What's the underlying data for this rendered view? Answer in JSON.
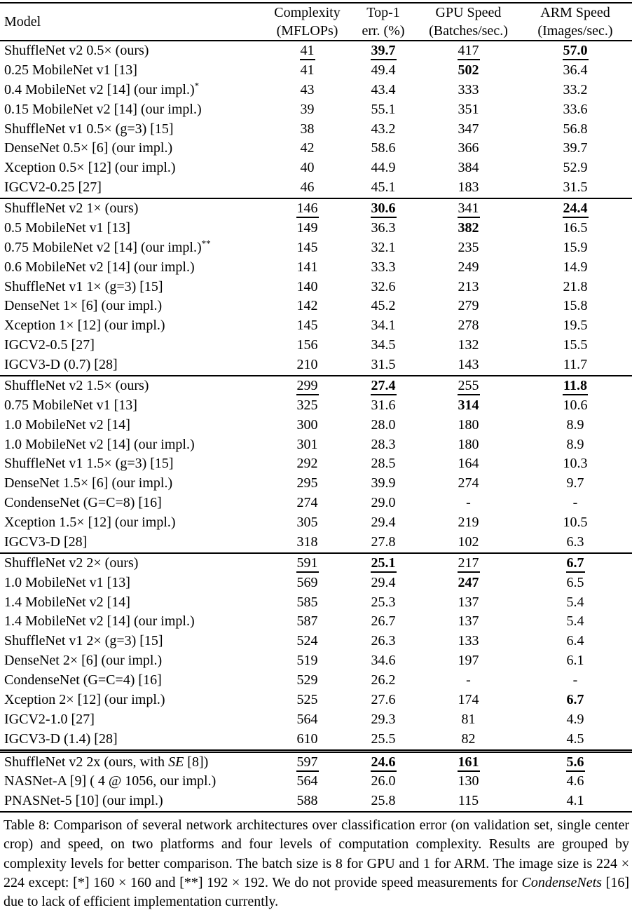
{
  "colors": {
    "text": "#000000",
    "background": "#ffffff"
  },
  "table": {
    "header": {
      "model": "Model",
      "cols": [
        {
          "l1": "Complexity",
          "l2": "(MFLOPs)"
        },
        {
          "l1": "Top-1",
          "l2": "err. (%)"
        },
        {
          "l1": "GPU Speed",
          "l2": "(Batches/sec.)"
        },
        {
          "l1": "ARM Speed",
          "l2": "(Images/sec.)"
        }
      ]
    },
    "groups": [
      {
        "rows": [
          {
            "model": "ShuffleNet v2 0.5× (ours)",
            "values": [
              "41",
              "39.7",
              "417",
              "57.0"
            ],
            "styles": [
              "u",
              "bu",
              "u",
              "bu"
            ]
          },
          {
            "model": "0.25 MobileNet v1 [13]",
            "values": [
              "41",
              "49.4",
              "502",
              "36.4"
            ],
            "styles": [
              "",
              "",
              "b",
              ""
            ]
          },
          {
            "model": "0.4 MobileNet v2 [14] (our impl.)",
            "sup": "*",
            "values": [
              "43",
              "43.4",
              "333",
              "33.2"
            ],
            "styles": [
              "",
              "",
              "",
              ""
            ]
          },
          {
            "model": "0.15 MobileNet v2 [14] (our impl.)",
            "values": [
              "39",
              "55.1",
              "351",
              "33.6"
            ],
            "styles": [
              "",
              "",
              "",
              ""
            ]
          },
          {
            "model": "ShuffleNet v1 0.5× (g=3) [15]",
            "values": [
              "38",
              "43.2",
              "347",
              "56.8"
            ],
            "styles": [
              "",
              "",
              "",
              ""
            ]
          },
          {
            "model": "DenseNet 0.5× [6] (our impl.)",
            "values": [
              "42",
              "58.6",
              "366",
              "39.7"
            ],
            "styles": [
              "",
              "",
              "",
              ""
            ]
          },
          {
            "model": "Xception 0.5× [12] (our impl.)",
            "values": [
              "40",
              "44.9",
              "384",
              "52.9"
            ],
            "styles": [
              "",
              "",
              "",
              ""
            ]
          },
          {
            "model": "IGCV2-0.25 [27]",
            "values": [
              "46",
              "45.1",
              "183",
              "31.5"
            ],
            "styles": [
              "",
              "",
              "",
              ""
            ]
          }
        ]
      },
      {
        "rows": [
          {
            "model": "ShuffleNet v2 1× (ours)",
            "values": [
              "146",
              "30.6",
              "341",
              "24.4"
            ],
            "styles": [
              "u",
              "bu",
              "u",
              "bu"
            ]
          },
          {
            "model": "0.5 MobileNet v1 [13]",
            "values": [
              "149",
              "36.3",
              "382",
              "16.5"
            ],
            "styles": [
              "",
              "",
              "b",
              ""
            ]
          },
          {
            "model": "0.75 MobileNet v2 [14] (our impl.)",
            "sup": "**",
            "values": [
              "145",
              "32.1",
              "235",
              "15.9"
            ],
            "styles": [
              "",
              "",
              "",
              ""
            ]
          },
          {
            "model": "0.6 MobileNet v2 [14] (our impl.)",
            "values": [
              "141",
              "33.3",
              "249",
              "14.9"
            ],
            "styles": [
              "",
              "",
              "",
              ""
            ]
          },
          {
            "model": "ShuffleNet v1 1× (g=3) [15]",
            "values": [
              "140",
              "32.6",
              "213",
              "21.8"
            ],
            "styles": [
              "",
              "",
              "",
              ""
            ]
          },
          {
            "model": "DenseNet 1× [6] (our impl.)",
            "values": [
              "142",
              "45.2",
              "279",
              "15.8"
            ],
            "styles": [
              "",
              "",
              "",
              ""
            ]
          },
          {
            "model": "Xception 1× [12] (our impl.)",
            "values": [
              "145",
              "34.1",
              "278",
              "19.5"
            ],
            "styles": [
              "",
              "",
              "",
              ""
            ]
          },
          {
            "model": "IGCV2-0.5 [27]",
            "values": [
              "156",
              "34.5",
              "132",
              "15.5"
            ],
            "styles": [
              "",
              "",
              "",
              ""
            ]
          },
          {
            "model": "IGCV3-D (0.7) [28]",
            "values": [
              "210",
              "31.5",
              "143",
              "11.7"
            ],
            "styles": [
              "",
              "",
              "",
              ""
            ]
          }
        ]
      },
      {
        "rows": [
          {
            "model": "ShuffleNet v2 1.5× (ours)",
            "values": [
              "299",
              "27.4",
              "255",
              "11.8"
            ],
            "styles": [
              "u",
              "bu",
              "u",
              "bu"
            ]
          },
          {
            "model": "0.75 MobileNet v1 [13]",
            "values": [
              "325",
              "31.6",
              "314",
              "10.6"
            ],
            "styles": [
              "",
              "",
              "b",
              ""
            ]
          },
          {
            "model": "1.0 MobileNet v2 [14]",
            "values": [
              "300",
              "28.0",
              "180",
              "8.9"
            ],
            "styles": [
              "",
              "",
              "",
              ""
            ]
          },
          {
            "model": "1.0 MobileNet v2 [14] (our impl.)",
            "values": [
              "301",
              "28.3",
              "180",
              "8.9"
            ],
            "styles": [
              "",
              "",
              "",
              ""
            ]
          },
          {
            "model": "ShuffleNet v1 1.5× (g=3) [15]",
            "values": [
              "292",
              "28.5",
              "164",
              "10.3"
            ],
            "styles": [
              "",
              "",
              "",
              ""
            ]
          },
          {
            "model": "DenseNet 1.5× [6] (our impl.)",
            "values": [
              "295",
              "39.9",
              "274",
              "9.7"
            ],
            "styles": [
              "",
              "",
              "",
              ""
            ]
          },
          {
            "model": "CondenseNet (G=C=8) [16]",
            "values": [
              "274",
              "29.0",
              "-",
              "-"
            ],
            "styles": [
              "",
              "",
              "",
              ""
            ]
          },
          {
            "model": "Xception 1.5× [12] (our impl.)",
            "values": [
              "305",
              "29.4",
              "219",
              "10.5"
            ],
            "styles": [
              "",
              "",
              "",
              ""
            ]
          },
          {
            "model": "IGCV3-D [28]",
            "values": [
              "318",
              "27.8",
              "102",
              "6.3"
            ],
            "styles": [
              "",
              "",
              "",
              ""
            ]
          }
        ]
      },
      {
        "rows": [
          {
            "model": "ShuffleNet v2 2× (ours)",
            "values": [
              "591",
              "25.1",
              "217",
              "6.7"
            ],
            "styles": [
              "u",
              "bu",
              "u",
              "bu"
            ]
          },
          {
            "model": "1.0 MobileNet v1 [13]",
            "values": [
              "569",
              "29.4",
              "247",
              "6.5"
            ],
            "styles": [
              "",
              "",
              "b",
              ""
            ]
          },
          {
            "model": "1.4 MobileNet v2 [14]",
            "values": [
              "585",
              "25.3",
              "137",
              "5.4"
            ],
            "styles": [
              "",
              "",
              "",
              ""
            ]
          },
          {
            "model": "1.4 MobileNet v2 [14] (our impl.)",
            "values": [
              "587",
              "26.7",
              "137",
              "5.4"
            ],
            "styles": [
              "",
              "",
              "",
              ""
            ]
          },
          {
            "model": "ShuffleNet v1 2× (g=3) [15]",
            "values": [
              "524",
              "26.3",
              "133",
              "6.4"
            ],
            "styles": [
              "",
              "",
              "",
              ""
            ]
          },
          {
            "model": "DenseNet 2× [6] (our impl.)",
            "values": [
              "519",
              "34.6",
              "197",
              "6.1"
            ],
            "styles": [
              "",
              "",
              "",
              ""
            ]
          },
          {
            "model": "CondenseNet (G=C=4) [16]",
            "values": [
              "529",
              "26.2",
              "-",
              "-"
            ],
            "styles": [
              "",
              "",
              "",
              ""
            ]
          },
          {
            "model": "Xception 2× [12] (our impl.)",
            "values": [
              "525",
              "27.6",
              "174",
              "6.7"
            ],
            "styles": [
              "",
              "",
              "",
              "b"
            ]
          },
          {
            "model": "IGCV2-1.0 [27]",
            "values": [
              "564",
              "29.3",
              "81",
              "4.9"
            ],
            "styles": [
              "",
              "",
              "",
              ""
            ]
          },
          {
            "model": "IGCV3-D (1.4) [28]",
            "values": [
              "610",
              "25.5",
              "82",
              "4.5"
            ],
            "styles": [
              "",
              "",
              "",
              ""
            ]
          }
        ]
      },
      {
        "rows": [
          {
            "model": [
              {
                "t": "ShuffleNet v2 2x (ours, with "
              },
              {
                "t": "SE",
                "i": true
              },
              {
                "t": " [8])"
              }
            ],
            "values": [
              "597",
              "24.6",
              "161",
              "5.6"
            ],
            "styles": [
              "u",
              "bu",
              "bu",
              "bu"
            ]
          },
          {
            "model": "NASNet-A [9] ( 4 @ 1056, our impl.)",
            "values": [
              "564",
              "26.0",
              "130",
              "4.6"
            ],
            "styles": [
              "",
              "",
              "",
              ""
            ]
          },
          {
            "model": "PNASNet-5 [10] (our impl.)",
            "values": [
              "588",
              "25.8",
              "115",
              "4.1"
            ],
            "styles": [
              "",
              "",
              "",
              ""
            ]
          }
        ]
      }
    ]
  },
  "caption": {
    "parts": [
      {
        "t": "Table 8: Comparison of several network architectures over classification error (on validation set, single center crop) and speed, on two platforms and four levels of computation complexity. Results are grouped by complexity levels for better comparison. The batch size is 8 for GPU and 1 for ARM. The image size is 224 × 224 except: [*] 160 × 160 and [**] 192 × 192. We do not provide speed measurements for "
      },
      {
        "t": "CondenseNets",
        "i": true
      },
      {
        "t": " [16] due to lack of efficient implementation currently."
      }
    ]
  }
}
